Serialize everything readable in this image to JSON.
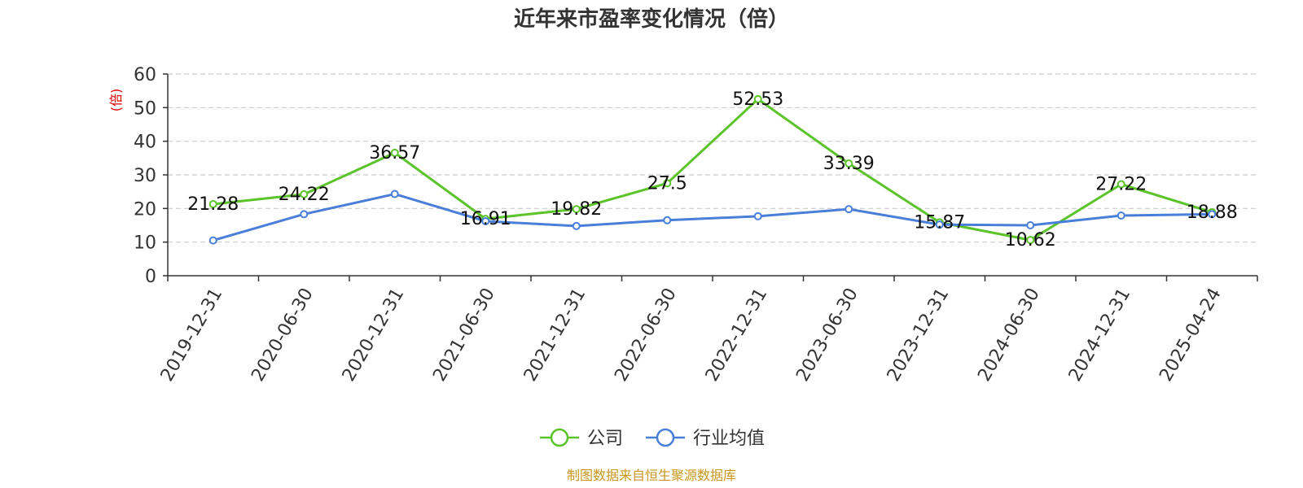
{
  "chart_data": {
    "type": "line",
    "title": "近年来市盈率变化情况（倍）",
    "ylabel": "(倍)",
    "xlabel": "",
    "ylim": [
      0,
      60
    ],
    "yticks": [
      0,
      10,
      20,
      30,
      40,
      50,
      60
    ],
    "grid": true,
    "legend_position": "bottom",
    "categories": [
      "2019-12-31",
      "2020-06-30",
      "2020-12-31",
      "2021-06-30",
      "2021-12-31",
      "2022-06-30",
      "2022-12-31",
      "2023-06-30",
      "2023-12-31",
      "2024-06-30",
      "2024-12-31",
      "2025-04-24"
    ],
    "series": [
      {
        "name": "公司",
        "color": "#5bc42a",
        "values": [
          21.28,
          24.22,
          36.57,
          16.91,
          19.82,
          27.5,
          52.53,
          33.39,
          15.87,
          10.62,
          27.22,
          18.88
        ],
        "labels": [
          "21.28",
          "24.22",
          "36.57",
          "16.91",
          "19.82",
          "27.5",
          "52.53",
          "33.39",
          "15.87",
          "10.62",
          "27.22",
          "18.88"
        ],
        "show_labels": true
      },
      {
        "name": "行业均值",
        "color": "#4a7fd9",
        "values": [
          10.5,
          18.3,
          24.3,
          16.2,
          14.8,
          16.5,
          17.7,
          19.8,
          15.2,
          15.0,
          17.9,
          18.3
        ],
        "show_labels": false
      }
    ],
    "source": "制图数据来自恒生聚源数据库"
  }
}
